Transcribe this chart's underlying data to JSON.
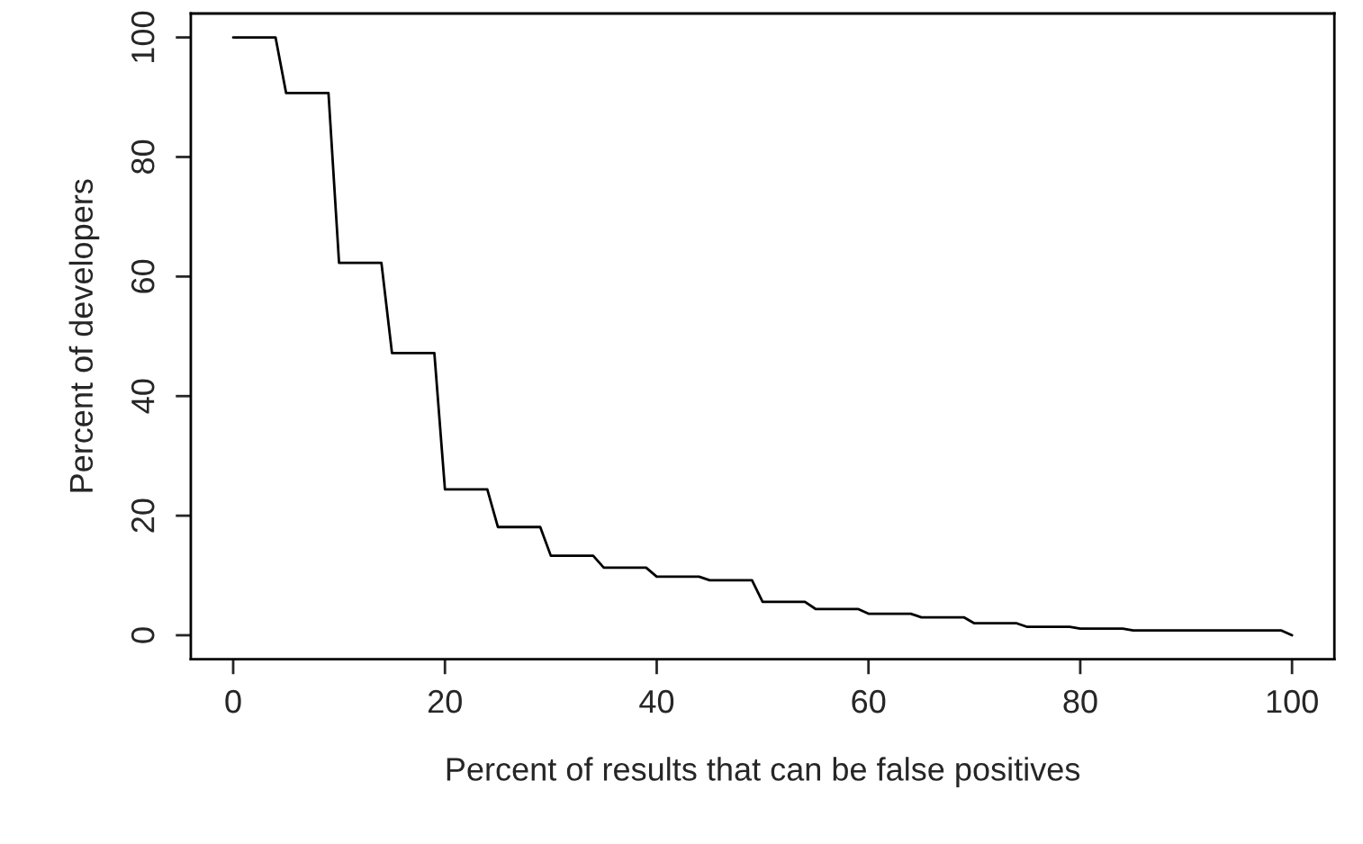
{
  "chart_data": {
    "type": "line",
    "xlabel": "Percent of results that can be false positives",
    "ylabel": "Percent of developers",
    "x": [
      0,
      4,
      5,
      9,
      10,
      14,
      15,
      19,
      20,
      24,
      25,
      29,
      30,
      34,
      35,
      39,
      40,
      44,
      45,
      49,
      50,
      54,
      55,
      59,
      60,
      64,
      65,
      69,
      70,
      74,
      75,
      79,
      80,
      84,
      85,
      99,
      100
    ],
    "series": [
      {
        "color": "#000000",
        "values": [
          100,
          100,
          90.7,
          90.7,
          62.3,
          62.3,
          47.2,
          47.2,
          24.4,
          24.4,
          18.1,
          18.1,
          13.3,
          13.3,
          11.3,
          11.3,
          9.8,
          9.8,
          9.2,
          9.2,
          5.6,
          5.6,
          4.4,
          4.4,
          3.6,
          3.6,
          3.0,
          3.0,
          2.0,
          2.0,
          1.4,
          1.4,
          1.1,
          1.1,
          0.8,
          0.8,
          0
        ]
      }
    ],
    "xlim": [
      -4,
      104
    ],
    "ylim": [
      -4,
      104
    ],
    "xticks": [
      0,
      20,
      40,
      60,
      80,
      100
    ],
    "yticks": [
      0,
      20,
      40,
      60,
      80,
      100
    ],
    "grid": false,
    "legend": false
  }
}
